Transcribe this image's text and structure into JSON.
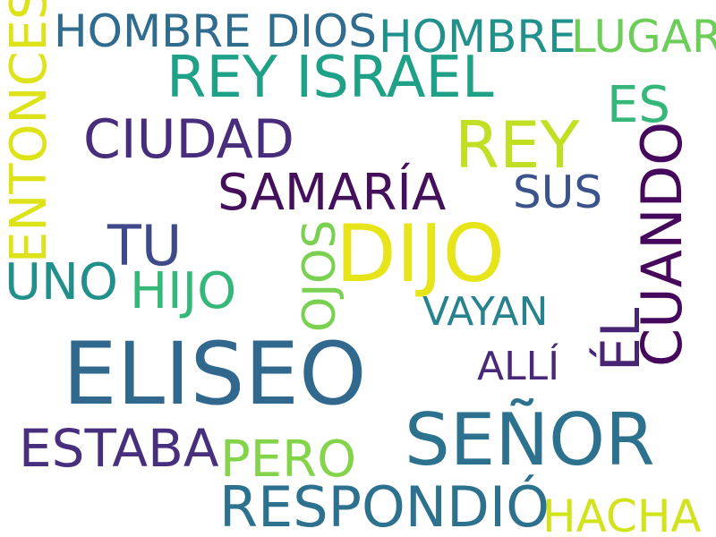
{
  "words": [
    {
      "text": "ELISEO",
      "color": "#31688e"
    },
    {
      "text": "DIJO",
      "color": "#e7e419"
    },
    {
      "text": "SEÑOR",
      "color": "#2c728e"
    },
    {
      "text": "REY ISRAEL",
      "color": "#1fa187"
    },
    {
      "text": "REY",
      "color": "#c2df23"
    },
    {
      "text": "CIUDAD",
      "color": "#472d7b"
    },
    {
      "text": "SAMARÍA",
      "color": "#440f5b"
    },
    {
      "text": "RESPONDIÓ",
      "color": "#2c718e"
    },
    {
      "text": "HOMBRE DIOS",
      "color": "#2f6c8e"
    },
    {
      "text": "HOMBRE",
      "color": "#21918c"
    },
    {
      "text": "LUGAR",
      "color": "#6cce59"
    },
    {
      "text": "ES",
      "color": "#35b779"
    },
    {
      "text": "SUS",
      "color": "#3b528b"
    },
    {
      "text": "TU",
      "color": "#3e4a89"
    },
    {
      "text": "UNO",
      "color": "#21908d"
    },
    {
      "text": "HIJO",
      "color": "#35b779"
    },
    {
      "text": "VAYAN",
      "color": "#26828e"
    },
    {
      "text": "ALLÍ",
      "color": "#482878"
    },
    {
      "text": "ESTABA",
      "color": "#472f7d"
    },
    {
      "text": "PERO",
      "color": "#84d44b"
    },
    {
      "text": "HACHA",
      "color": "#d2e21b"
    },
    {
      "text": "ENTONCES",
      "color": "#dde318"
    },
    {
      "text": "OJOS",
      "color": "#7ad151"
    },
    {
      "text": "ÉL",
      "color": "#482475"
    },
    {
      "text": "CUANDO",
      "color": "#46085c"
    }
  ]
}
